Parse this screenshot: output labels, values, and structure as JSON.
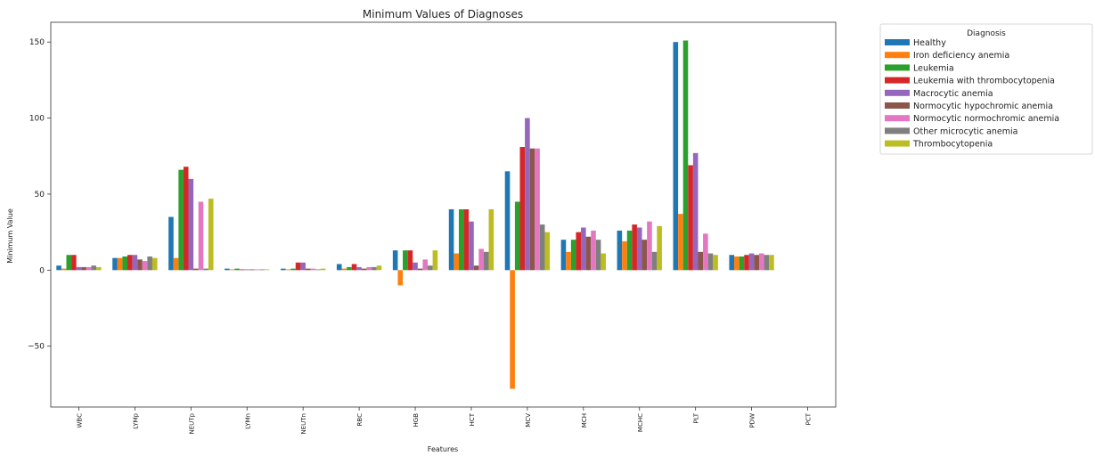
{
  "chart_data": {
    "type": "bar",
    "title": "Minimum Values of Diagnoses",
    "xlabel": "Features",
    "ylabel": "Minimum Value",
    "ylim": [
      -90,
      163
    ],
    "yticks": [
      -50,
      0,
      50,
      100,
      150
    ],
    "grid": false,
    "legend_placement": "outside-top-right",
    "legend_title": "Diagnosis",
    "categories": [
      "WBC",
      "LYMp",
      "NEUTp",
      "LYMn",
      "NEUTn",
      "RBC",
      "HGB",
      "HCT",
      "MCV",
      "MCH",
      "MCHC",
      "PLT",
      "PDW",
      "PCT"
    ],
    "series": [
      {
        "name": "Healthy",
        "color": "#1f77b4",
        "values": [
          3,
          8,
          35,
          1,
          1,
          4,
          13,
          40,
          65,
          20,
          26,
          150,
          10,
          null
        ]
      },
      {
        "name": "Iron deficiency anemia",
        "color": "#ff7f0e",
        "values": [
          1,
          8,
          8,
          0.5,
          0.5,
          1,
          -10,
          11,
          -78,
          12,
          19,
          37,
          9,
          null
        ]
      },
      {
        "name": "Leukemia",
        "color": "#2ca02c",
        "values": [
          10,
          9,
          66,
          1,
          1,
          2,
          13,
          40,
          45,
          20,
          26,
          151,
          9,
          null
        ]
      },
      {
        "name": "Leukemia with thrombocytopenia",
        "color": "#d62728",
        "values": [
          10,
          10,
          68,
          0.5,
          5,
          4,
          13,
          40,
          81,
          25,
          30,
          69,
          10,
          null
        ]
      },
      {
        "name": "Macrocytic anemia",
        "color": "#9467bd",
        "values": [
          2,
          10,
          60,
          0.5,
          5,
          2,
          5,
          32,
          100,
          28,
          28,
          77,
          11,
          null
        ]
      },
      {
        "name": "Normocytic hypochromic anemia",
        "color": "#8c564b",
        "values": [
          2,
          7,
          1,
          0.5,
          1,
          1,
          1,
          3,
          80,
          22,
          20,
          12,
          10,
          null
        ]
      },
      {
        "name": "Normocytic normochromic anemia",
        "color": "#e377c2",
        "values": [
          2,
          6,
          45,
          0.5,
          1,
          2,
          7,
          14,
          80,
          26,
          32,
          24,
          11,
          null
        ]
      },
      {
        "name": "Other microcytic anemia",
        "color": "#7f7f7f",
        "values": [
          3,
          9,
          1,
          0.5,
          0.5,
          2,
          3,
          12,
          30,
          20,
          12,
          11,
          10,
          null
        ]
      },
      {
        "name": "Thrombocytopenia",
        "color": "#bcbd22",
        "values": [
          2,
          8,
          47,
          0.5,
          1,
          3,
          13,
          40,
          25,
          11,
          29,
          10,
          10,
          null
        ]
      }
    ]
  }
}
